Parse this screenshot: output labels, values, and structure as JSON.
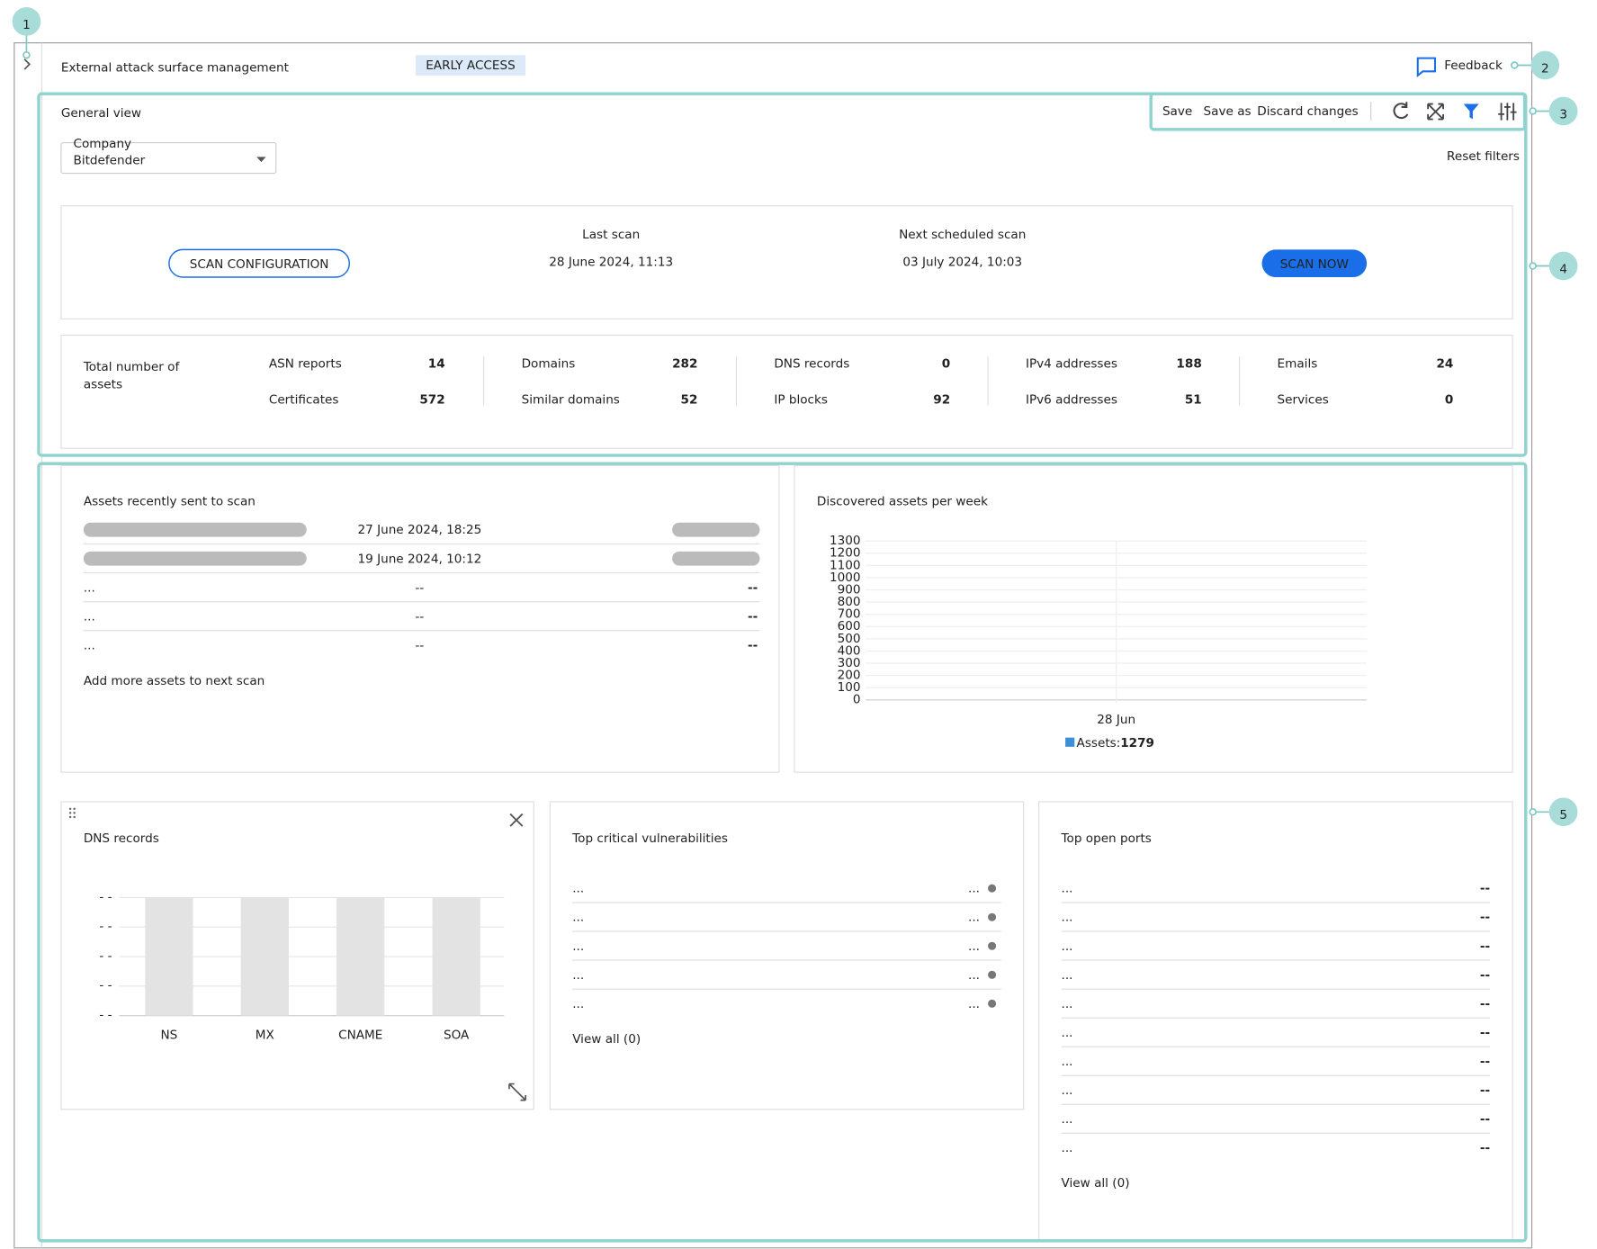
{
  "callouts": [
    "1",
    "2",
    "3",
    "4",
    "5"
  ],
  "header": {
    "title": "External attack surface management",
    "badge": "EARLY ACCESS",
    "feedback": "Feedback"
  },
  "general_view": {
    "title": "General view",
    "toolbar": {
      "save": "Save",
      "save_as": "Save as",
      "discard": "Discard changes"
    },
    "company_filter": {
      "label": "Company",
      "value": "Bitdefender"
    },
    "reset_filters": "Reset filters"
  },
  "scan": {
    "configure_button": "SCAN CONFIGURATION",
    "last_scan_label": "Last scan",
    "last_scan": "28 June 2024, 11:13",
    "next_scan_label": "Next scheduled scan",
    "next_scan": "03 July 2024, 10:03",
    "scan_now_button": "SCAN NOW"
  },
  "totals": {
    "title_lines": [
      "Total number of",
      "assets"
    ],
    "items": [
      {
        "label": "ASN reports",
        "value": 14
      },
      {
        "label": "Certificates",
        "value": 572
      },
      {
        "label": "Domains",
        "value": 282
      },
      {
        "label": "Similar domains",
        "value": 52
      },
      {
        "label": "DNS records",
        "value": 0
      },
      {
        "label": "IP blocks",
        "value": 92
      },
      {
        "label": "IPv4 addresses",
        "value": 188
      },
      {
        "label": "IPv6 addresses",
        "value": 51
      },
      {
        "label": "Emails",
        "value": 24
      },
      {
        "label": "Services",
        "value": 0
      }
    ]
  },
  "recent_assets": {
    "title": "Assets recently sent to scan",
    "rows": [
      {
        "date": "27 June 2024, 18:25"
      },
      {
        "date": "19 June 2024, 10:12"
      },
      {
        "name": "...",
        "date": "--",
        "status": "--"
      },
      {
        "name": "...",
        "date": "--",
        "status": "--"
      },
      {
        "name": "...",
        "date": "--",
        "status": "--"
      }
    ],
    "link": "Add more assets to next scan"
  },
  "discovered_chart": {
    "type": "line",
    "title": "Discovered assets per week",
    "ylim": [
      0,
      1300
    ],
    "yticks": [
      0,
      100,
      200,
      300,
      400,
      500,
      600,
      700,
      800,
      900,
      1000,
      1100,
      1200,
      1300
    ],
    "categories": [
      "28 Jun"
    ],
    "legend": {
      "label": "Assets:",
      "value": 1279
    }
  },
  "dns_records": {
    "title": "DNS records",
    "yticks": [
      "- -",
      "- -",
      "- -",
      "- -",
      "- -"
    ],
    "categories": [
      "NS",
      "MX",
      "CNAME",
      "SOA"
    ]
  },
  "vulnerabilities": {
    "title": "Top critical vulnerabilities",
    "rows": [
      {
        "name": "...",
        "severity": "..."
      },
      {
        "name": "...",
        "severity": "..."
      },
      {
        "name": "...",
        "severity": "..."
      },
      {
        "name": "...",
        "severity": "..."
      },
      {
        "name": "...",
        "severity": "..."
      }
    ],
    "link": "View all (0)"
  },
  "open_ports": {
    "title": "Top open ports",
    "rows": [
      {
        "port": "...",
        "count": "--"
      },
      {
        "port": "...",
        "count": "--"
      },
      {
        "port": "...",
        "count": "--"
      },
      {
        "port": "...",
        "count": "--"
      },
      {
        "port": "...",
        "count": "--"
      },
      {
        "port": "...",
        "count": "--"
      },
      {
        "port": "...",
        "count": "--"
      },
      {
        "port": "...",
        "count": "--"
      },
      {
        "port": "...",
        "count": "--"
      },
      {
        "port": "...",
        "count": "--"
      }
    ],
    "link": "View all (0)"
  }
}
